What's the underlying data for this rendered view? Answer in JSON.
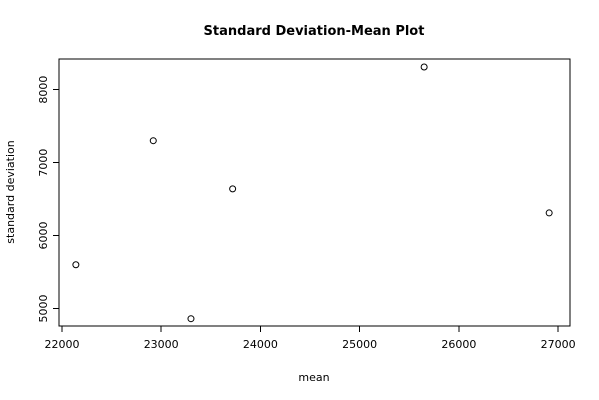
{
  "chart_data": {
    "type": "scatter",
    "title": "Standard Deviation-Mean Plot",
    "xlabel": "mean",
    "ylabel": "standard deviation",
    "xlim": [
      21970,
      27120
    ],
    "ylim": [
      4760,
      8420
    ],
    "xticks": [
      22000,
      23000,
      24000,
      25000,
      26000,
      27000
    ],
    "yticks": [
      5000,
      6000,
      7000,
      8000
    ],
    "grid": false,
    "legend": "none",
    "points": [
      {
        "x": 22140,
        "y": 5600
      },
      {
        "x": 22920,
        "y": 7300
      },
      {
        "x": 23300,
        "y": 4860
      },
      {
        "x": 23720,
        "y": 6640
      },
      {
        "x": 25650,
        "y": 8310
      },
      {
        "x": 26910,
        "y": 6310
      }
    ]
  }
}
